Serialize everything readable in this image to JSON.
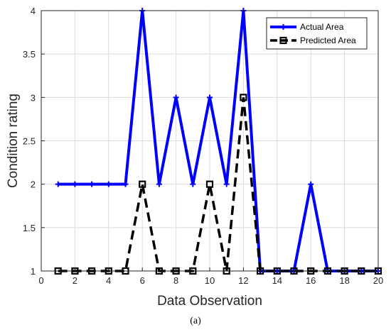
{
  "chart_data": {
    "type": "line",
    "xlabel": "Data Observation",
    "ylabel": "Condition rating",
    "xlim": [
      0,
      20
    ],
    "ylim": [
      1,
      4
    ],
    "xticks": [
      0,
      2,
      4,
      6,
      8,
      10,
      12,
      14,
      16,
      18,
      20
    ],
    "yticks": [
      1,
      1.5,
      2,
      2.5,
      3,
      3.5,
      4
    ],
    "grid": true,
    "legend_position": "top-right",
    "x": [
      1,
      2,
      3,
      4,
      5,
      6,
      7,
      8,
      9,
      10,
      11,
      12,
      13,
      14,
      15,
      16,
      17,
      18,
      19,
      20
    ],
    "series": [
      {
        "name": "Actual Area",
        "color": "#0000ff",
        "style": "solid",
        "marker": "plus",
        "values": [
          2,
          2,
          2,
          2,
          2,
          4,
          2,
          3,
          2,
          3,
          2,
          4,
          1,
          1,
          1,
          2,
          1,
          1,
          1,
          1
        ]
      },
      {
        "name": "Predicted Area",
        "color": "#000000",
        "style": "dashed",
        "marker": "square",
        "values": [
          1,
          1,
          1,
          1,
          1,
          2,
          1,
          1,
          1,
          2,
          1,
          3,
          1,
          1,
          1,
          1,
          1,
          1,
          1,
          1
        ]
      }
    ]
  },
  "caption": "(a)"
}
